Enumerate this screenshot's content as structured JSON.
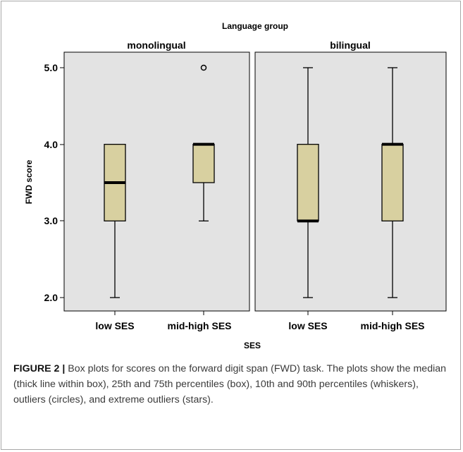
{
  "chart_data": {
    "type": "box",
    "title": "Language group",
    "panels": [
      "monolingual",
      "bilingual"
    ],
    "categories": [
      "low SES",
      "mid-high SES"
    ],
    "xlabel": "SES",
    "ylabel": "FWD score",
    "yticks": [
      "5.0",
      "4.0",
      "3.0",
      "2.0"
    ],
    "ytick_values": [
      5.0,
      4.0,
      3.0,
      2.0
    ],
    "ylim": [
      1.8,
      5.2
    ],
    "boxes": [
      {
        "panel": "monolingual",
        "category": "low SES",
        "whisker_low": 2.0,
        "q1": 3.0,
        "median": 3.5,
        "q3": 4.0,
        "whisker_high": 4.0,
        "outliers": []
      },
      {
        "panel": "monolingual",
        "category": "mid-high SES",
        "whisker_low": 3.0,
        "q1": 3.5,
        "median": 4.0,
        "q3": 4.0,
        "whisker_high": 4.0,
        "outliers": [
          5.0
        ]
      },
      {
        "panel": "bilingual",
        "category": "low SES",
        "whisker_low": 2.0,
        "q1": 3.0,
        "median": 3.0,
        "q3": 4.0,
        "whisker_high": 5.0,
        "outliers": []
      },
      {
        "panel": "bilingual",
        "category": "mid-high SES",
        "whisker_low": 2.0,
        "q1": 3.0,
        "median": 4.0,
        "q3": 4.0,
        "whisker_high": 5.0,
        "outliers": []
      }
    ],
    "colors": {
      "plot_bg": "#e3e3e3",
      "box_fill": "#d8d0a0",
      "line": "#000000",
      "frame_border": "#a8a8a8"
    }
  },
  "caption": {
    "label": "FIGURE 2 |",
    "text": " Box plots for scores on the forward digit span (FWD) task. The plots show the median (thick line within box), 25th and 75th percentiles (box), 10th and 90th percentiles (whiskers), outliers (circles), and extreme outliers (stars)."
  }
}
